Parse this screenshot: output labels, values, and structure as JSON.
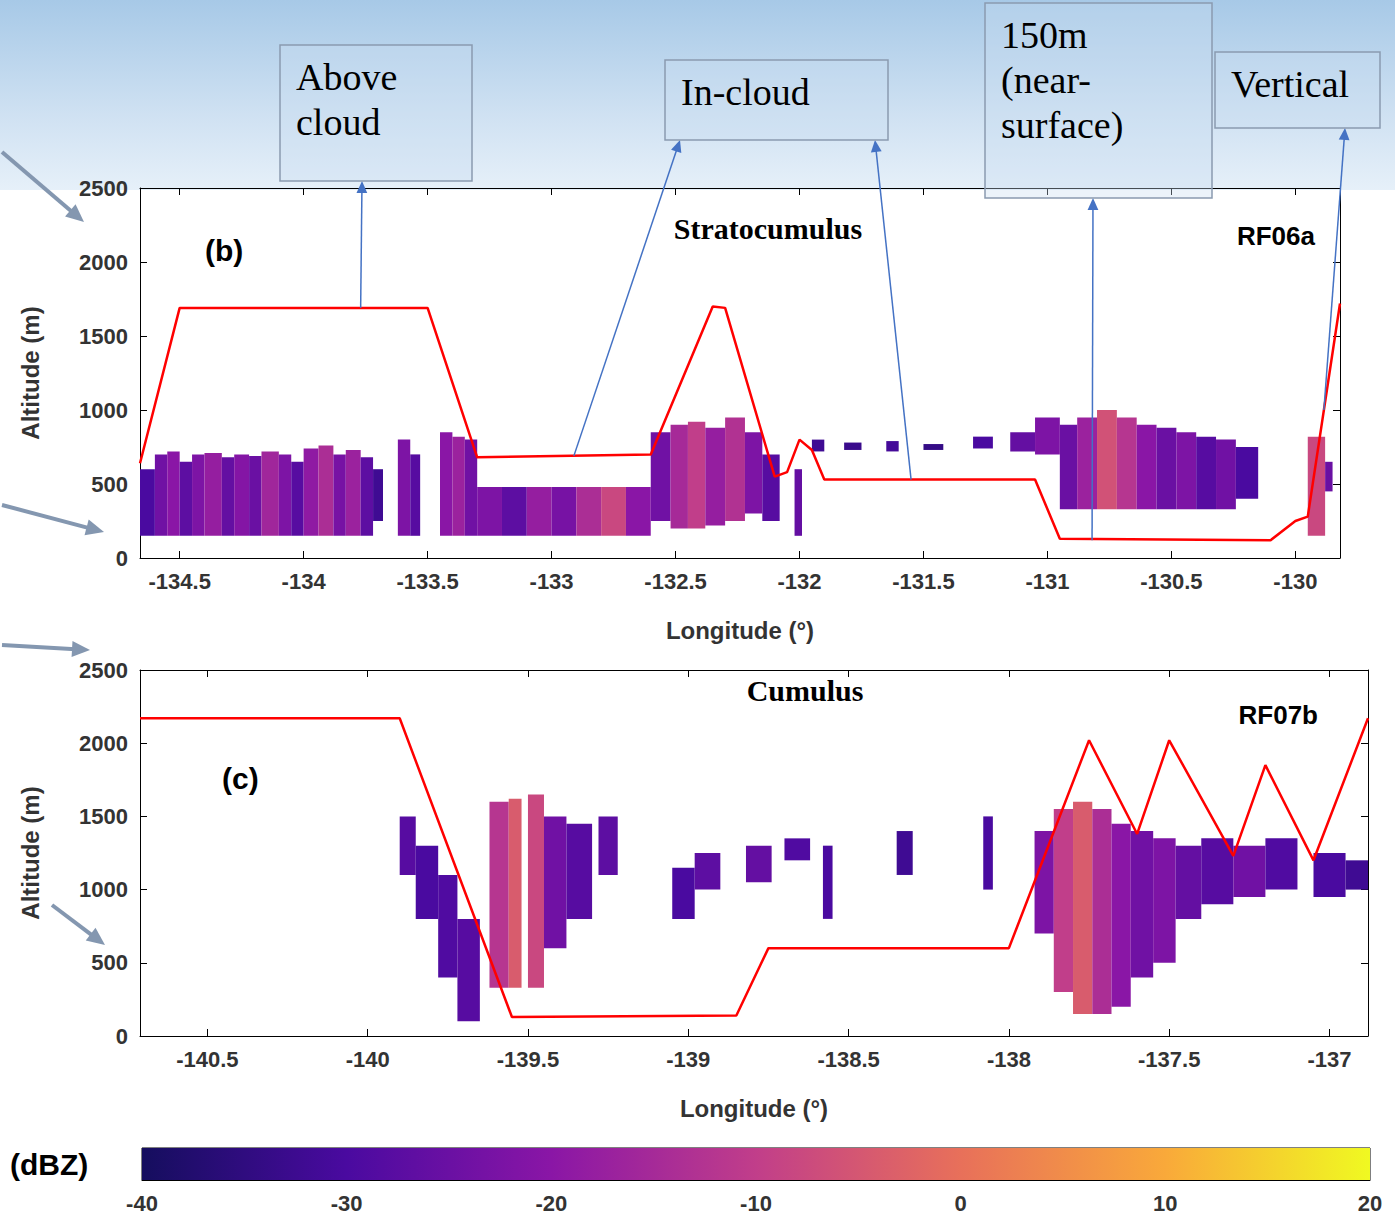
{
  "chart_data": [
    {
      "type": "line",
      "title": "Stratocumulus",
      "panel_label": "(b)",
      "flight": "RF06a",
      "x_label": "Longitude (°)",
      "y_label": "Altitude (m)",
      "xlim": [
        -134.66,
        -129.82
      ],
      "xticks": [
        -134.5,
        -134,
        -133.5,
        -133,
        -132.5,
        -132,
        -131.5,
        -131,
        -130.5,
        -130
      ],
      "ylim": [
        0,
        2500
      ],
      "yticks": [
        0,
        500,
        1000,
        1500,
        2000,
        2500
      ],
      "grid": false,
      "series": [
        {
          "color": "#ff0000",
          "x": [
            -134.66,
            -134.5,
            -133.5,
            -133.3,
            -132.6,
            -132.35,
            -132.3,
            -132.1,
            -132.05,
            -132.0,
            -131.95,
            -131.9,
            -131.05,
            -130.95,
            -130.1,
            -130.0,
            -129.95,
            -129.82
          ],
          "values": [
            640,
            1690,
            1690,
            680,
            700,
            1700,
            1690,
            550,
            580,
            800,
            730,
            530,
            530,
            130,
            120,
            250,
            280,
            1720
          ]
        }
      ],
      "echoes": [
        [
          -134.66,
          -134.6,
          150,
          600,
          -30
        ],
        [
          -134.6,
          -134.55,
          150,
          700,
          -24
        ],
        [
          -134.55,
          -134.5,
          150,
          720,
          -20
        ],
        [
          -134.5,
          -134.45,
          150,
          650,
          -27
        ],
        [
          -134.45,
          -134.4,
          150,
          700,
          -22
        ],
        [
          -134.4,
          -134.33,
          150,
          710,
          -18
        ],
        [
          -134.33,
          -134.28,
          150,
          680,
          -26
        ],
        [
          -134.28,
          -134.22,
          150,
          700,
          -21
        ],
        [
          -134.22,
          -134.17,
          150,
          690,
          -25
        ],
        [
          -134.17,
          -134.1,
          150,
          720,
          -16
        ],
        [
          -134.1,
          -134.05,
          150,
          700,
          -22
        ],
        [
          -134.05,
          -134.0,
          150,
          650,
          -28
        ],
        [
          -134.0,
          -133.94,
          150,
          740,
          -19
        ],
        [
          -133.94,
          -133.88,
          150,
          760,
          -14
        ],
        [
          -133.88,
          -133.83,
          150,
          700,
          -23
        ],
        [
          -133.83,
          -133.77,
          150,
          730,
          -17
        ],
        [
          -133.77,
          -133.72,
          150,
          680,
          -27
        ],
        [
          -133.72,
          -133.68,
          250,
          600,
          -32
        ],
        [
          -133.62,
          -133.57,
          150,
          800,
          -22
        ],
        [
          -133.57,
          -133.53,
          150,
          700,
          -28
        ],
        [
          -133.45,
          -133.4,
          150,
          850,
          -20
        ],
        [
          -133.4,
          -133.35,
          150,
          820,
          -17
        ],
        [
          -133.35,
          -133.3,
          150,
          800,
          -24
        ],
        [
          -133.3,
          -133.2,
          150,
          480,
          -22
        ],
        [
          -133.2,
          -133.1,
          150,
          480,
          -27
        ],
        [
          -133.1,
          -133.0,
          150,
          480,
          -18
        ],
        [
          -133.0,
          -132.9,
          150,
          480,
          -23
        ],
        [
          -132.9,
          -132.8,
          150,
          480,
          -14
        ],
        [
          -132.8,
          -132.7,
          150,
          480,
          -8
        ],
        [
          -132.7,
          -132.6,
          150,
          480,
          -20
        ],
        [
          -132.6,
          -132.52,
          250,
          850,
          -24
        ],
        [
          -132.52,
          -132.45,
          200,
          900,
          -15
        ],
        [
          -132.45,
          -132.38,
          200,
          920,
          -10
        ],
        [
          -132.38,
          -132.3,
          220,
          880,
          -18
        ],
        [
          -132.3,
          -132.22,
          250,
          950,
          -13
        ],
        [
          -132.22,
          -132.15,
          300,
          850,
          -22
        ],
        [
          -132.15,
          -132.08,
          250,
          700,
          -28
        ],
        [
          -132.02,
          -131.99,
          150,
          600,
          -26
        ],
        [
          -131.95,
          -131.9,
          720,
          800,
          -32
        ],
        [
          -131.82,
          -131.75,
          730,
          780,
          -33
        ],
        [
          -131.65,
          -131.6,
          720,
          790,
          -31
        ],
        [
          -131.5,
          -131.42,
          730,
          770,
          -34
        ],
        [
          -131.3,
          -131.22,
          740,
          820,
          -30
        ],
        [
          -131.15,
          -131.05,
          720,
          850,
          -26
        ],
        [
          -131.05,
          -130.95,
          700,
          950,
          -22
        ],
        [
          -130.95,
          -130.88,
          330,
          900,
          -25
        ],
        [
          -130.88,
          -130.8,
          330,
          950,
          -17
        ],
        [
          -130.8,
          -130.72,
          330,
          1000,
          -6
        ],
        [
          -130.72,
          -130.64,
          330,
          950,
          -12
        ],
        [
          -130.64,
          -130.56,
          330,
          900,
          -20
        ],
        [
          -130.56,
          -130.48,
          330,
          880,
          -25
        ],
        [
          -130.48,
          -130.4,
          330,
          850,
          -22
        ],
        [
          -130.4,
          -130.32,
          330,
          820,
          -28
        ],
        [
          -130.32,
          -130.24,
          330,
          800,
          -24
        ],
        [
          -130.24,
          -130.15,
          400,
          750,
          -30
        ],
        [
          -129.95,
          -129.88,
          150,
          820,
          -8
        ],
        [
          -129.88,
          -129.85,
          450,
          650,
          -25
        ]
      ]
    },
    {
      "type": "line",
      "title": "Cumulus",
      "panel_label": "(c)",
      "flight": "RF07b",
      "x_label": "Longitude (°)",
      "y_label": "Altitude (m)",
      "xlim": [
        -140.71,
        -136.88
      ],
      "xticks": [
        -140.5,
        -140,
        -139.5,
        -139,
        -138.5,
        -138,
        -137.5,
        -137
      ],
      "ylim": [
        0,
        2500
      ],
      "yticks": [
        0,
        500,
        1000,
        1500,
        2000,
        2500
      ],
      "grid": false,
      "series": [
        {
          "color": "#ff0000",
          "x": [
            -140.71,
            -139.9,
            -139.55,
            -138.85,
            -138.75,
            -138.0,
            -137.75,
            -137.6,
            -137.5,
            -137.3,
            -137.2,
            -137.05,
            -136.88
          ],
          "values": [
            2170,
            2170,
            130,
            140,
            600,
            600,
            2020,
            1380,
            2020,
            1230,
            1850,
            1200,
            2170
          ]
        }
      ],
      "echoes": [
        [
          -139.9,
          -139.85,
          1100,
          1500,
          -28
        ],
        [
          -139.85,
          -139.78,
          800,
          1300,
          -30
        ],
        [
          -139.78,
          -139.72,
          400,
          1100,
          -29
        ],
        [
          -139.72,
          -139.65,
          100,
          800,
          -28
        ],
        [
          -139.62,
          -139.56,
          330,
          1600,
          -12
        ],
        [
          -139.56,
          -139.52,
          330,
          1620,
          -4
        ],
        [
          -139.5,
          -139.45,
          330,
          1650,
          -8
        ],
        [
          -139.45,
          -139.38,
          600,
          1500,
          -24
        ],
        [
          -139.38,
          -139.3,
          800,
          1450,
          -28
        ],
        [
          -139.28,
          -139.22,
          1100,
          1500,
          -27
        ],
        [
          -139.05,
          -138.98,
          800,
          1150,
          -30
        ],
        [
          -138.98,
          -138.9,
          1000,
          1250,
          -27
        ],
        [
          -138.82,
          -138.74,
          1050,
          1300,
          -26
        ],
        [
          -138.7,
          -138.62,
          1200,
          1350,
          -29
        ],
        [
          -138.58,
          -138.55,
          800,
          1300,
          -30
        ],
        [
          -138.35,
          -138.3,
          1100,
          1400,
          -32
        ],
        [
          -138.08,
          -138.05,
          1000,
          1500,
          -30
        ],
        [
          -137.92,
          -137.86,
          700,
          1400,
          -22
        ],
        [
          -137.86,
          -137.8,
          300,
          1550,
          -10
        ],
        [
          -137.8,
          -137.74,
          150,
          1600,
          -4
        ],
        [
          -137.74,
          -137.68,
          150,
          1550,
          -14
        ],
        [
          -137.68,
          -137.62,
          200,
          1450,
          -20
        ],
        [
          -137.62,
          -137.55,
          400,
          1400,
          -24
        ],
        [
          -137.55,
          -137.48,
          500,
          1350,
          -22
        ],
        [
          -137.48,
          -137.4,
          800,
          1300,
          -26
        ],
        [
          -137.4,
          -137.3,
          900,
          1350,
          -28
        ],
        [
          -137.3,
          -137.2,
          950,
          1300,
          -24
        ],
        [
          -137.2,
          -137.1,
          1000,
          1350,
          -29
        ],
        [
          -137.05,
          -136.95,
          950,
          1250,
          -30
        ],
        [
          -136.95,
          -136.88,
          1000,
          1200,
          -32
        ]
      ]
    }
  ],
  "colorbar": {
    "label": "(dBZ)",
    "lim": [
      -40,
      20
    ],
    "ticks": [
      -40,
      -30,
      -20,
      -10,
      0,
      10,
      20
    ]
  },
  "annotations": [
    {
      "text": "Above cloud",
      "panel": 0,
      "targets": [
        [
          -133.77,
          1690
        ]
      ]
    },
    {
      "text": "In-cloud",
      "panel": 0,
      "targets": [
        [
          -132.91,
          690
        ],
        [
          -131.55,
          530
        ]
      ]
    },
    {
      "text": "150m (near-surface)",
      "panel": 0,
      "targets": [
        [
          -130.82,
          120
        ]
      ]
    },
    {
      "text": "Vertical",
      "panel": 0,
      "targets": [
        [
          -129.885,
          1000
        ]
      ]
    }
  ]
}
